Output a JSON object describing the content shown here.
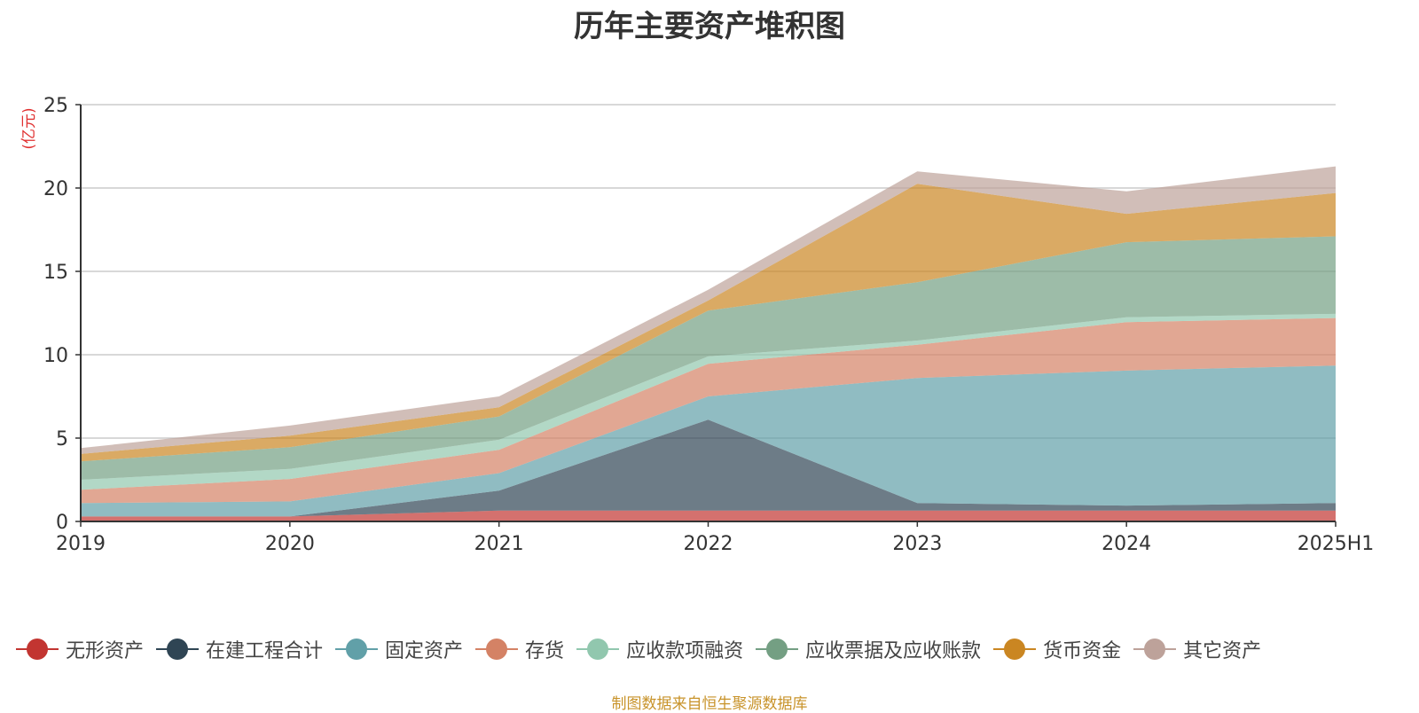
{
  "title": "历年主要资产堆积图",
  "source": "制图数据来自恒生聚源数据库",
  "chart_data": {
    "type": "area",
    "stacked": true,
    "title": "历年主要资产堆积图",
    "ylabel": "(亿元)",
    "ylim": [
      0,
      25
    ],
    "yticks": [
      "0",
      "5",
      "10",
      "15",
      "20",
      "25"
    ],
    "grid": true,
    "legend_position": "bottom",
    "categories": [
      "2019",
      "2020",
      "2021",
      "2022",
      "2023",
      "2024",
      "2025H1"
    ],
    "series": [
      {
        "name": "无形资产",
        "color": "#c23531",
        "values": [
          0.3,
          0.3,
          0.65,
          0.65,
          0.65,
          0.65,
          0.65
        ]
      },
      {
        "name": "在建工程合计",
        "color": "#2f4554",
        "values": [
          0.0,
          0.0,
          1.2,
          5.45,
          0.45,
          0.3,
          0.45
        ]
      },
      {
        "name": "固定资产",
        "color": "#61a0a8",
        "values": [
          0.8,
          0.9,
          1.05,
          1.4,
          7.5,
          8.1,
          8.25
        ]
      },
      {
        "name": "存货",
        "color": "#d48265",
        "values": [
          0.8,
          1.35,
          1.4,
          1.95,
          2.0,
          2.9,
          2.85
        ]
      },
      {
        "name": "应收款项融资",
        "color": "#91c7ae",
        "values": [
          0.6,
          0.6,
          0.6,
          0.45,
          0.25,
          0.3,
          0.25
        ]
      },
      {
        "name": "应收票据及应收账款",
        "color": "#749f83",
        "values": [
          1.1,
          1.3,
          1.4,
          2.75,
          3.5,
          4.5,
          4.65
        ]
      },
      {
        "name": "货币资金",
        "color": "#ca8622",
        "values": [
          0.45,
          0.7,
          0.55,
          0.6,
          5.9,
          1.7,
          2.6
        ]
      },
      {
        "name": "其它资产",
        "color": "#bda29a",
        "values": [
          0.35,
          0.6,
          0.65,
          0.65,
          0.75,
          1.35,
          1.6
        ]
      }
    ]
  }
}
